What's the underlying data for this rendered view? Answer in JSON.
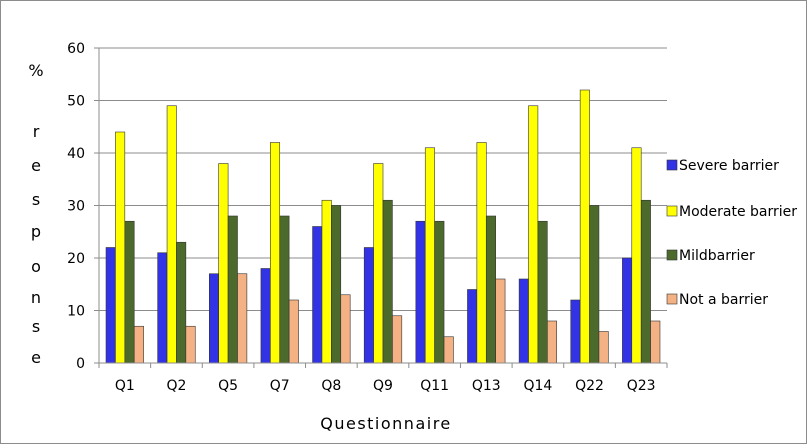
{
  "chart_data": {
    "type": "bar",
    "categories": [
      "Q1",
      "Q2",
      "Q5",
      "Q7",
      "Q8",
      "Q9",
      "Q11",
      "Q13",
      "Q14",
      "Q22",
      "Q23"
    ],
    "series": [
      {
        "name": "Severe barrier",
        "color": "#3333e6",
        "values": [
          22,
          21,
          17,
          18,
          26,
          22,
          27,
          14,
          16,
          12,
          20
        ]
      },
      {
        "name": "Moderate barrier",
        "color": "#ffff00",
        "values": [
          44,
          49,
          38,
          42,
          31,
          38,
          41,
          42,
          49,
          52,
          41
        ]
      },
      {
        "name": "Mildbarrier",
        "color": "#4b6a2c",
        "values": [
          27,
          23,
          28,
          28,
          30,
          31,
          27,
          28,
          27,
          30,
          31
        ]
      },
      {
        "name": "Not a barrier",
        "color": "#f4b183",
        "values": [
          7,
          7,
          17,
          12,
          13,
          9,
          5,
          16,
          8,
          6,
          8
        ]
      }
    ],
    "title": "",
    "xlabel": "Questionnaire",
    "ylabel": "% response",
    "ylabel_chars": [
      "%",
      "r",
      "e",
      "s",
      "p",
      "o",
      "n",
      "s",
      "e"
    ],
    "ylim": [
      0,
      60
    ],
    "yticks": [
      0,
      10,
      20,
      30,
      40,
      50,
      60
    ],
    "grid": true,
    "legend": "right"
  }
}
